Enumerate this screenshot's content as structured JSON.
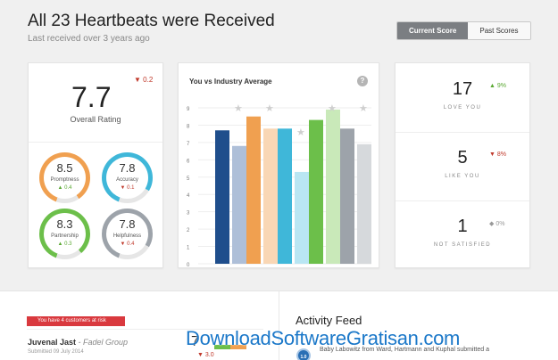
{
  "header": {
    "title": "All 23 Heartbeats were Received",
    "subtitle": "Last received over 3 years ago",
    "tabs": [
      {
        "label": "Current Score",
        "active": true
      },
      {
        "label": "Past Scores",
        "active": false
      }
    ]
  },
  "rating": {
    "score": "7.7",
    "delta": "▼ 0.2",
    "label": "Overall Rating",
    "gauges": [
      {
        "value": "8.5",
        "label": "Promptness",
        "delta": "▲ 0.4",
        "direction": "up",
        "color": "#f0a050",
        "fraction": 0.85
      },
      {
        "value": "7.8",
        "label": "Accuracy",
        "delta": "▼ 0.1",
        "direction": "down",
        "color": "#3fb7d9",
        "fraction": 0.78
      },
      {
        "value": "8.3",
        "label": "Partnership",
        "delta": "▲ 0.3",
        "direction": "up",
        "color": "#6cbf4a",
        "fraction": 0.83
      },
      {
        "value": "7.8",
        "label": "Helpfulness",
        "delta": "▼ 0.4",
        "direction": "down",
        "color": "#9da3aa",
        "fraction": 0.78
      }
    ]
  },
  "chart": {
    "title": "You vs Industry Average",
    "help_icon": "?",
    "chart_data": {
      "type": "bar",
      "title": "You vs Industry Average",
      "ylim": [
        0,
        9
      ],
      "y_ticks": [
        "0",
        "1",
        "2",
        "3",
        "4",
        "5",
        "6",
        "7",
        "8",
        "9"
      ],
      "grid": true,
      "groups": [
        {
          "you": 7.7,
          "industry": 6.8,
          "you_color": "#1f4e8c",
          "industry_color": "#aebfd8",
          "star": 8.9
        },
        {
          "you": 8.5,
          "industry": 7.8,
          "you_color": "#f0a050",
          "industry_color": "#f9d7b5",
          "star": 8.9
        },
        {
          "you": 7.8,
          "industry": 5.3,
          "you_color": "#3fb7d9",
          "industry_color": "#b9e6f3",
          "star": 7.5
        },
        {
          "you": 8.3,
          "industry": 8.9,
          "you_color": "#6cbf4a",
          "industry_color": "#c9e9b9",
          "star": 8.9
        },
        {
          "you": 7.8,
          "industry": 6.9,
          "you_color": "#9da3aa",
          "industry_color": "#d6d9dc",
          "star": 8.9
        }
      ]
    }
  },
  "counts": [
    {
      "value": "17",
      "delta": "▲ 9%",
      "direction": "up",
      "label": "LOVE YOU"
    },
    {
      "value": "5",
      "delta": "▼ 8%",
      "direction": "down",
      "label": "LIKE YOU"
    },
    {
      "value": "1",
      "delta": "◆ 0%",
      "direction": "flat",
      "label": "NOT SATISFIED"
    }
  ],
  "customers": {
    "risk_badge": "You have 4 customers at risk",
    "name": "Juvenal Jast",
    "company": " - Fadel Group",
    "submitted": "Submitted 09 July 2014",
    "score": "7",
    "delta": "▼ 3.0"
  },
  "activity": {
    "title": "Activity Feed",
    "badge": "1.0",
    "text": "Baby Labowitz from Ward, Hartmann and Kuphal submitted a"
  },
  "watermark": "DownloadSoftwareGratisan.com"
}
